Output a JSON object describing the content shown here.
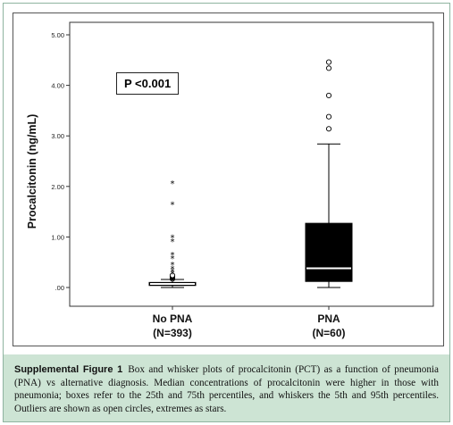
{
  "chart_data": {
    "type": "boxplot",
    "ylabel": "Procalcitonin (ng/mL)",
    "ylim": [
      0,
      5
    ],
    "yticks": [
      ".00",
      "1.00",
      "2.00",
      "3.00",
      "4.00",
      "5.00"
    ],
    "annotation": "P <0.001",
    "grid": false,
    "groups": [
      {
        "name": "No PNA",
        "n_label": "(N=393)",
        "whisker_low": 0.0,
        "q1": 0.04,
        "median": 0.07,
        "q3": 0.1,
        "whisker_high": 0.16,
        "outliers": [
          0.17,
          0.19,
          0.2,
          0.21,
          0.22,
          0.23,
          0.24
        ],
        "extremes": [
          0.28,
          0.33,
          0.38,
          0.46,
          0.58,
          0.65,
          0.92,
          1.0,
          1.65,
          2.07
        ]
      },
      {
        "name": "PNA",
        "n_label": "(N=60)",
        "whisker_low": 0.0,
        "q1": 0.12,
        "median": 0.38,
        "q3": 1.27,
        "whisker_high": 2.84,
        "outliers": [
          3.14,
          3.38,
          3.8,
          4.34,
          4.46
        ],
        "extremes": []
      }
    ]
  },
  "caption": {
    "title": "Supplemental Figure 1",
    "text": "Box and whisker plots of procalcitonin (PCT) as a function of pneumonia (PNA) vs alternative diagnosis. Median concentrations of procalcitonin were higher in those with pneumonia; boxes refer to the 25th and 75th percentiles, and whiskers the 5th and 95th percentiles. Outliers are shown as open circles, extremes as stars."
  }
}
